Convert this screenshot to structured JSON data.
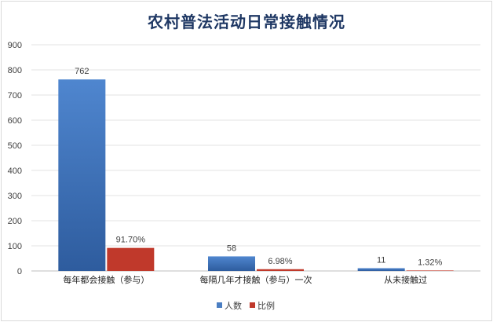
{
  "chart_data": {
    "type": "bar",
    "title": "农村普法活动日常接触情况",
    "categories": [
      "每年都会接触（参与）",
      "每隔几年才接触（参与）一次",
      "从未接触过"
    ],
    "series": [
      {
        "name": "人数",
        "values": [
          762,
          58,
          11
        ],
        "labels": [
          "762",
          "58",
          "11"
        ],
        "color": "#4a7ec2"
      },
      {
        "name": "比例",
        "values": [
          91.7,
          6.98,
          1.32
        ],
        "labels": [
          "91.70%",
          "6.98%",
          "1.32%"
        ],
        "color": "#c0392b"
      }
    ],
    "ylim": [
      0,
      900
    ],
    "yticks": [
      "0",
      "100",
      "200",
      "300",
      "400",
      "500",
      "600",
      "700",
      "800",
      "900"
    ],
    "grid": true,
    "legend_position": "bottom"
  }
}
